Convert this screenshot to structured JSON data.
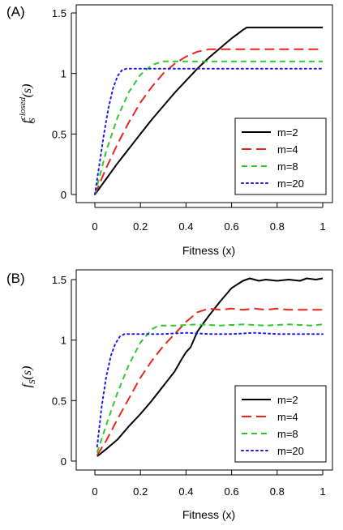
{
  "chart_data": [
    {
      "type": "line",
      "panel_label": "(A)",
      "xlabel": "Fitness (x)",
      "ylabel_main": "f",
      "ylabel_sub": "S",
      "ylabel_sup": "closed",
      "ylabel_arg": "(s)",
      "xlim": [
        0,
        1
      ],
      "ylim": [
        0,
        1.5
      ],
      "xticks": [
        "0",
        "0.2",
        "0.4",
        "0.6",
        "0.8",
        "1"
      ],
      "yticks": [
        "0",
        "0.5",
        "1",
        "1.5"
      ],
      "legend_position": "bottom-right",
      "series": [
        {
          "name": "m=2",
          "color": "#000000",
          "dash": "solid",
          "points": [
            [
              0,
              0
            ],
            [
              0.05,
              0.13
            ],
            [
              0.1,
              0.26
            ],
            [
              0.15,
              0.38
            ],
            [
              0.2,
              0.5
            ],
            [
              0.25,
              0.62
            ],
            [
              0.3,
              0.73
            ],
            [
              0.35,
              0.84
            ],
            [
              0.4,
              0.94
            ],
            [
              0.45,
              1.04
            ],
            [
              0.5,
              1.13
            ],
            [
              0.55,
              1.21
            ],
            [
              0.6,
              1.29
            ],
            [
              0.65,
              1.36
            ],
            [
              0.667,
              1.38
            ],
            [
              1.0,
              1.38
            ]
          ]
        },
        {
          "name": "m=4",
          "color": "#e8261c",
          "dash": "long",
          "points": [
            [
              0,
              0
            ],
            [
              0.05,
              0.22
            ],
            [
              0.1,
              0.42
            ],
            [
              0.15,
              0.6
            ],
            [
              0.2,
              0.76
            ],
            [
              0.25,
              0.89
            ],
            [
              0.3,
              1.0
            ],
            [
              0.35,
              1.08
            ],
            [
              0.4,
              1.14
            ],
            [
              0.45,
              1.18
            ],
            [
              0.5,
              1.2
            ],
            [
              1.0,
              1.2
            ]
          ]
        },
        {
          "name": "m=8",
          "color": "#2ccb2c",
          "dash": "short",
          "points": [
            [
              0,
              0
            ],
            [
              0.05,
              0.36
            ],
            [
              0.1,
              0.64
            ],
            [
              0.15,
              0.85
            ],
            [
              0.2,
              0.99
            ],
            [
              0.25,
              1.07
            ],
            [
              0.3,
              1.1
            ],
            [
              1.0,
              1.1
            ]
          ]
        },
        {
          "name": "m=20",
          "color": "#1c1cf0",
          "dash": "dot",
          "points": [
            [
              0,
              0
            ],
            [
              0.02,
              0.25
            ],
            [
              0.04,
              0.5
            ],
            [
              0.06,
              0.72
            ],
            [
              0.08,
              0.88
            ],
            [
              0.1,
              0.98
            ],
            [
              0.12,
              1.03
            ],
            [
              0.14,
              1.04
            ],
            [
              1.0,
              1.04
            ]
          ]
        }
      ]
    },
    {
      "type": "line",
      "panel_label": "(B)",
      "xlabel": "Fitness (x)",
      "ylabel_main": "f",
      "ylabel_sub": "S",
      "ylabel_arg": "(s)",
      "xlim": [
        0,
        1
      ],
      "ylim": [
        0,
        1.5
      ],
      "xticks": [
        "0",
        "0.2",
        "0.4",
        "0.6",
        "0.8",
        "1"
      ],
      "yticks": [
        "0",
        "0.5",
        "1",
        "1.5"
      ],
      "legend_position": "bottom-right",
      "series": [
        {
          "name": "m=2",
          "color": "#000000",
          "dash": "solid",
          "points": [
            [
              0.01,
              0.04
            ],
            [
              0.05,
              0.1
            ],
            [
              0.1,
              0.18
            ],
            [
              0.15,
              0.29
            ],
            [
              0.2,
              0.39
            ],
            [
              0.25,
              0.5
            ],
            [
              0.3,
              0.62
            ],
            [
              0.35,
              0.74
            ],
            [
              0.38,
              0.84
            ],
            [
              0.4,
              0.9
            ],
            [
              0.42,
              0.94
            ],
            [
              0.45,
              1.07
            ],
            [
              0.48,
              1.15
            ],
            [
              0.5,
              1.2
            ],
            [
              0.55,
              1.32
            ],
            [
              0.6,
              1.43
            ],
            [
              0.65,
              1.49
            ],
            [
              0.68,
              1.51
            ],
            [
              0.72,
              1.49
            ],
            [
              0.75,
              1.5
            ],
            [
              0.8,
              1.49
            ],
            [
              0.85,
              1.5
            ],
            [
              0.9,
              1.49
            ],
            [
              0.93,
              1.51
            ],
            [
              0.97,
              1.5
            ],
            [
              1.0,
              1.51
            ]
          ]
        },
        {
          "name": "m=4",
          "color": "#e8261c",
          "dash": "long",
          "points": [
            [
              0.01,
              0.05
            ],
            [
              0.05,
              0.17
            ],
            [
              0.1,
              0.35
            ],
            [
              0.15,
              0.52
            ],
            [
              0.2,
              0.69
            ],
            [
              0.25,
              0.83
            ],
            [
              0.3,
              0.95
            ],
            [
              0.35,
              1.05
            ],
            [
              0.4,
              1.15
            ],
            [
              0.45,
              1.23
            ],
            [
              0.5,
              1.26
            ],
            [
              0.55,
              1.25
            ],
            [
              0.6,
              1.26
            ],
            [
              0.65,
              1.25
            ],
            [
              0.7,
              1.26
            ],
            [
              0.75,
              1.25
            ],
            [
              0.8,
              1.26
            ],
            [
              0.85,
              1.25
            ],
            [
              0.9,
              1.25
            ],
            [
              0.95,
              1.25
            ],
            [
              1.0,
              1.25
            ]
          ]
        },
        {
          "name": "m=8",
          "color": "#2ccb2c",
          "dash": "short",
          "points": [
            [
              0.01,
              0.07
            ],
            [
              0.05,
              0.3
            ],
            [
              0.1,
              0.57
            ],
            [
              0.15,
              0.8
            ],
            [
              0.2,
              0.98
            ],
            [
              0.25,
              1.09
            ],
            [
              0.28,
              1.12
            ],
            [
              0.35,
              1.12
            ],
            [
              0.45,
              1.13
            ],
            [
              0.55,
              1.12
            ],
            [
              0.65,
              1.13
            ],
            [
              0.75,
              1.12
            ],
            [
              0.85,
              1.13
            ],
            [
              0.95,
              1.12
            ],
            [
              1.0,
              1.13
            ]
          ]
        },
        {
          "name": "m=20",
          "color": "#1c1cf0",
          "dash": "dot",
          "points": [
            [
              0.01,
              0.12
            ],
            [
              0.03,
              0.45
            ],
            [
              0.05,
              0.7
            ],
            [
              0.07,
              0.87
            ],
            [
              0.09,
              0.97
            ],
            [
              0.11,
              1.03
            ],
            [
              0.13,
              1.05
            ],
            [
              0.2,
              1.05
            ],
            [
              0.3,
              1.05
            ],
            [
              0.4,
              1.06
            ],
            [
              0.5,
              1.05
            ],
            [
              0.6,
              1.05
            ],
            [
              0.7,
              1.06
            ],
            [
              0.8,
              1.05
            ],
            [
              0.9,
              1.05
            ],
            [
              1.0,
              1.05
            ]
          ]
        }
      ]
    }
  ]
}
